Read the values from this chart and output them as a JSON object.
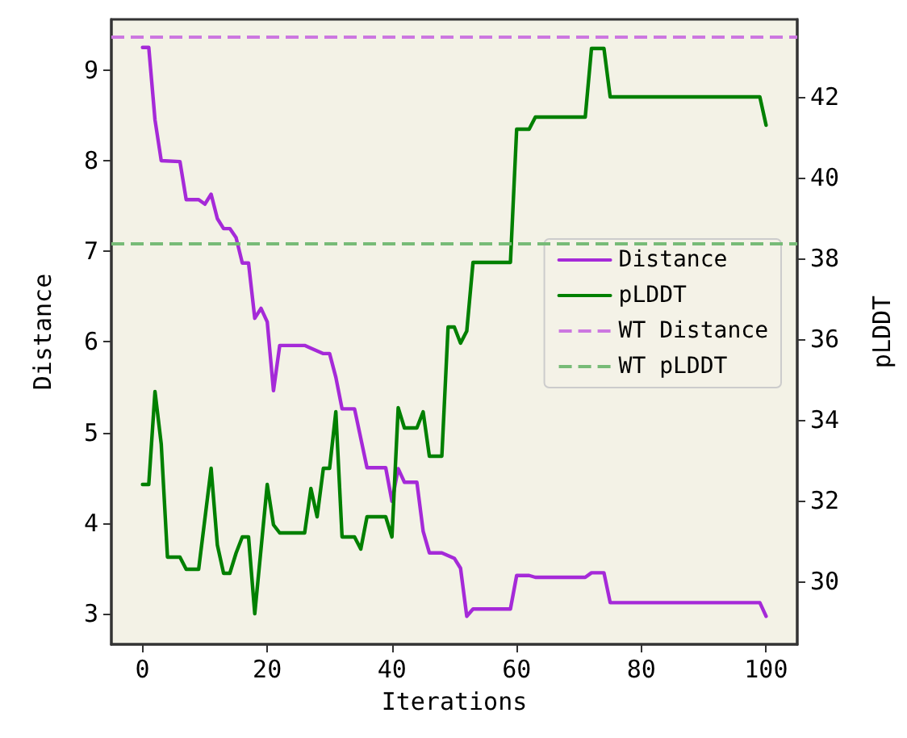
{
  "chart_data": {
    "type": "line",
    "xlabel": "Iterations",
    "ylabel": "Distance",
    "y2label": "pLDDT",
    "xlim": [
      -5,
      105
    ],
    "xticks": [
      0,
      20,
      40,
      60,
      80,
      100
    ],
    "ylim": [
      2.66,
      9.56
    ],
    "yticks": [
      3,
      4,
      5,
      6,
      7,
      8,
      9
    ],
    "y2lim": [
      28.44,
      43.92
    ],
    "y2ticks": [
      30,
      32,
      34,
      36,
      38,
      40,
      42
    ],
    "grid": false,
    "legend": "right",
    "marker": "none",
    "line_style": "solid",
    "series": [
      {
        "name": "Distance",
        "color": "#a52ad8",
        "axis": "y",
        "x": [
          0,
          1,
          2,
          3,
          6,
          7,
          9,
          10,
          11,
          12,
          13,
          14,
          15,
          16,
          17,
          18,
          19,
          20,
          21,
          22,
          26,
          27,
          29,
          30,
          31,
          32,
          34,
          36,
          39,
          40,
          41,
          42,
          44,
          45,
          46,
          48,
          50,
          51,
          52,
          53,
          59,
          60,
          62,
          63,
          71,
          72,
          74,
          75,
          99,
          100
        ],
        "values": [
          9.25,
          9.25,
          8.45,
          8.0,
          7.99,
          7.57,
          7.57,
          7.52,
          7.63,
          7.36,
          7.25,
          7.25,
          7.15,
          6.87,
          6.87,
          6.26,
          6.37,
          6.22,
          5.46,
          5.96,
          5.96,
          5.93,
          5.87,
          5.87,
          5.61,
          5.26,
          5.26,
          4.61,
          4.61,
          4.24,
          4.6,
          4.45,
          4.45,
          3.91,
          3.67,
          3.67,
          3.61,
          3.5,
          2.97,
          3.05,
          3.05,
          3.42,
          3.42,
          3.4,
          3.4,
          3.45,
          3.45,
          3.12,
          3.12,
          2.97
        ]
      },
      {
        "name": "pLDDT",
        "color": "#008000",
        "axis": "y2",
        "x": [
          0,
          1,
          2,
          3,
          4,
          6,
          7,
          9,
          11,
          12,
          13,
          14,
          15,
          16,
          17,
          18,
          20,
          21,
          22,
          26,
          27,
          28,
          29,
          30,
          31,
          32,
          34,
          35,
          36,
          39,
          40,
          41,
          42,
          44,
          45,
          46,
          48,
          49,
          50,
          51,
          52,
          53,
          59,
          60,
          62,
          63,
          71,
          72,
          74,
          75,
          99,
          100
        ],
        "values": [
          32.4,
          32.4,
          34.7,
          33.4,
          30.6,
          30.6,
          30.3,
          30.3,
          32.8,
          30.9,
          30.2,
          30.2,
          30.7,
          31.1,
          31.1,
          29.2,
          32.4,
          31.4,
          31.2,
          31.2,
          32.3,
          31.6,
          32.8,
          32.8,
          34.2,
          31.1,
          31.1,
          30.8,
          31.6,
          31.6,
          31.1,
          34.3,
          33.8,
          33.8,
          34.2,
          33.1,
          33.1,
          36.3,
          36.3,
          35.9,
          36.2,
          37.9,
          37.9,
          41.2,
          41.2,
          41.5,
          41.5,
          43.2,
          43.2,
          42.0,
          42.0,
          41.3
        ]
      }
    ],
    "ref_lines": [
      {
        "axis": "y",
        "value": 9.37,
        "label": "WT Distance",
        "color": "#cc77e0",
        "line_style": "dashed"
      },
      {
        "axis": "y2",
        "value": 38.36,
        "label": "WT pLDDT",
        "color": "#77bb77",
        "line_style": "dashed"
      }
    ]
  }
}
